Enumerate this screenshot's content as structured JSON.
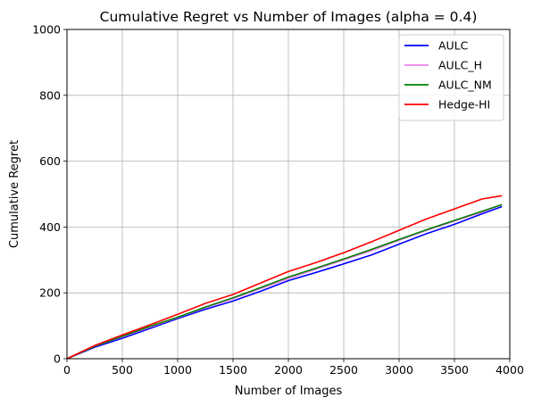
{
  "chart_data": {
    "type": "line",
    "title": "Cumulative Regret vs Number of Images (alpha = 0.4)",
    "xlabel": "Number of Images",
    "ylabel": "Cumulative Regret",
    "xlim": [
      0,
      4000
    ],
    "ylim": [
      0,
      1000
    ],
    "xticks": [
      0,
      500,
      1000,
      1500,
      2000,
      2500,
      3000,
      3500,
      4000
    ],
    "yticks": [
      0,
      200,
      400,
      600,
      800,
      1000
    ],
    "grid": true,
    "legend_position": "top-right",
    "x": [
      0,
      250,
      500,
      750,
      1000,
      1250,
      1500,
      1750,
      2000,
      2250,
      2500,
      2750,
      3000,
      3250,
      3500,
      3750,
      3930
    ],
    "series": [
      {
        "name": "AULC",
        "color": "#0000ff",
        "values": [
          0,
          35,
          62,
          92,
          122,
          150,
          175,
          205,
          237,
          262,
          288,
          315,
          348,
          380,
          408,
          440,
          462
        ]
      },
      {
        "name": "AULC_H",
        "color": "#ee82ee",
        "values": [
          0,
          38,
          67,
          96,
          125,
          155,
          182,
          213,
          243,
          272,
          300,
          328,
          360,
          390,
          418,
          445,
          468
        ]
      },
      {
        "name": "AULC_NM",
        "color": "#008000",
        "values": [
          0,
          38,
          68,
          98,
          126,
          157,
          185,
          216,
          248,
          275,
          303,
          332,
          362,
          392,
          420,
          448,
          468
        ]
      },
      {
        "name": "Hedge-HI",
        "color": "#ff0000",
        "values": [
          0,
          40,
          72,
          103,
          135,
          168,
          195,
          230,
          265,
          292,
          322,
          355,
          390,
          425,
          455,
          485,
          495
        ]
      }
    ]
  }
}
